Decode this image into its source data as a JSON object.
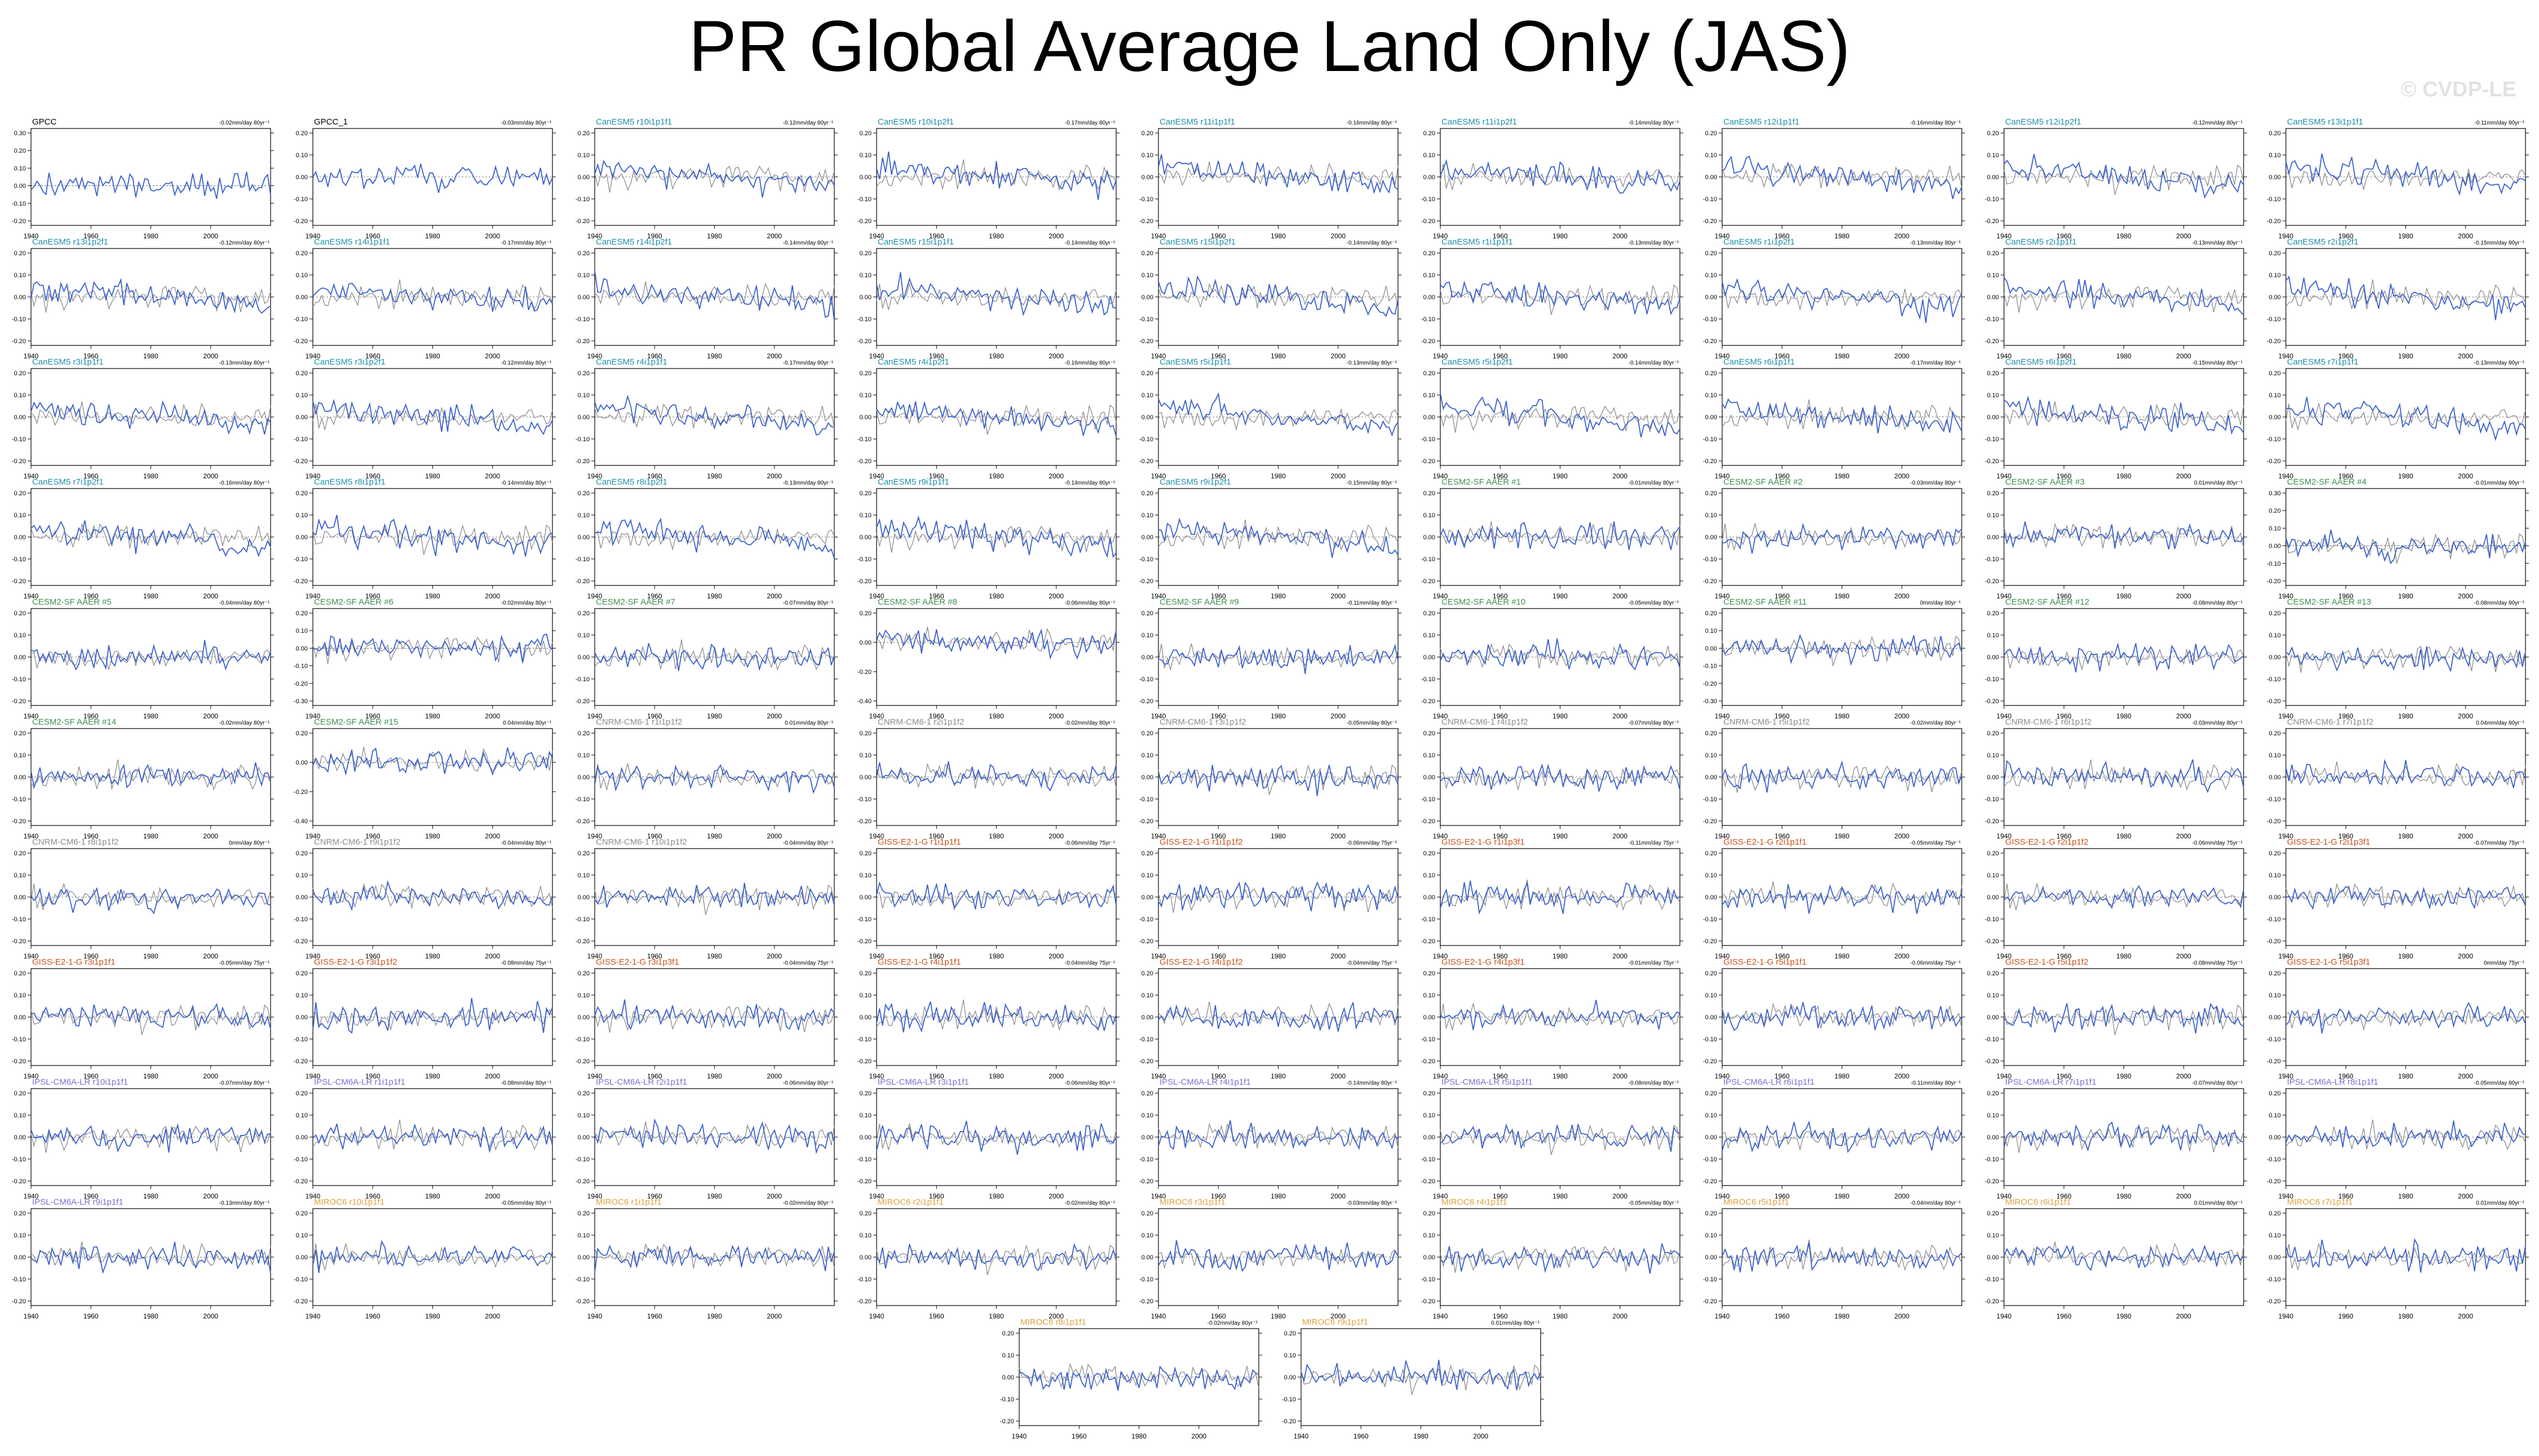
{
  "title": "PR Global Average Land Only (JAS)",
  "watermark": "© CVDP-LE",
  "colors": {
    "model_line": "#3a5fcd",
    "obs_line": "#8c8c8c",
    "canesm5": "#1f8fa8",
    "cesm2": "#3f8f4f",
    "cnrm": "#8c8c8c",
    "giss": "#c8501e",
    "ipsl": "#7a6fd0",
    "miroc": "#e0a040",
    "obs_title": "#000000"
  },
  "chart_data": {
    "type": "line",
    "x_range": [
      1940,
      2020
    ],
    "x_ticks": [
      "1940",
      "1960",
      "1980",
      "2000"
    ],
    "y_ticks_default": [
      "0.20",
      "0.10",
      "0.00",
      "-0.10",
      "-0.20"
    ],
    "panels": [
      {
        "name": "GPCC",
        "trend": "-0.02mm/day 80yr⁻¹",
        "group": "obs",
        "yticks": [
          "0.30",
          "0.20",
          "0.10",
          "0.00",
          "-0.10",
          "-0.20"
        ]
      },
      {
        "name": "GPCC_1",
        "trend": "-0.03mm/day 80yr⁻¹",
        "group": "obs"
      },
      {
        "name": "CanESM5 r10i1p1f1",
        "trend": "-0.12mm/day 80yr⁻¹",
        "group": "canesm5"
      },
      {
        "name": "CanESM5 r10i1p2f1",
        "trend": "-0.17mm/day 80yr⁻¹",
        "group": "canesm5"
      },
      {
        "name": "CanESM5 r11i1p1f1",
        "trend": "-0.16mm/day 80yr⁻¹",
        "group": "canesm5"
      },
      {
        "name": "CanESM5 r11i1p2f1",
        "trend": "-0.14mm/day 80yr⁻¹",
        "group": "canesm5"
      },
      {
        "name": "CanESM5 r12i1p1f1",
        "trend": "-0.16mm/day 80yr⁻¹",
        "group": "canesm5"
      },
      {
        "name": "CanESM5 r12i1p2f1",
        "trend": "-0.12mm/day 80yr⁻¹",
        "group": "canesm5"
      },
      {
        "name": "CanESM5 r13i1p1f1",
        "trend": "-0.11mm/day 80yr⁻¹",
        "group": "canesm5"
      },
      {
        "name": "CanESM5 r13i1p2f1",
        "trend": "-0.12mm/day 80yr⁻¹",
        "group": "canesm5"
      },
      {
        "name": "CanESM5 r14i1p1f1",
        "trend": "-0.17mm/day 80yr⁻¹",
        "group": "canesm5"
      },
      {
        "name": "CanESM5 r14i1p2f1",
        "trend": "-0.14mm/day 80yr⁻¹",
        "group": "canesm5"
      },
      {
        "name": "CanESM5 r15i1p1f1",
        "trend": "-0.14mm/day 80yr⁻¹",
        "group": "canesm5"
      },
      {
        "name": "CanESM5 r15i1p2f1",
        "trend": "-0.14mm/day 80yr⁻¹",
        "group": "canesm5"
      },
      {
        "name": "CanESM5 r1i1p1f1",
        "trend": "-0.13mm/day 80yr⁻¹",
        "group": "canesm5"
      },
      {
        "name": "CanESM5 r1i1p2f1",
        "trend": "-0.13mm/day 80yr⁻¹",
        "group": "canesm5"
      },
      {
        "name": "CanESM5 r2i1p1f1",
        "trend": "-0.13mm/day 80yr⁻¹",
        "group": "canesm5"
      },
      {
        "name": "CanESM5 r2i1p2f1",
        "trend": "-0.15mm/day 80yr⁻¹",
        "group": "canesm5"
      },
      {
        "name": "CanESM5 r3i1p1f1",
        "trend": "-0.13mm/day 80yr⁻¹",
        "group": "canesm5"
      },
      {
        "name": "CanESM5 r3i1p2f1",
        "trend": "-0.12mm/day 80yr⁻¹",
        "group": "canesm5"
      },
      {
        "name": "CanESM5 r4i1p1f1",
        "trend": "-0.17mm/day 80yr⁻¹",
        "group": "canesm5"
      },
      {
        "name": "CanESM5 r4i1p2f1",
        "trend": "-0.16mm/day 80yr⁻¹",
        "group": "canesm5"
      },
      {
        "name": "CanESM5 r5i1p1f1",
        "trend": "-0.13mm/day 80yr⁻¹",
        "group": "canesm5"
      },
      {
        "name": "CanESM5 r5i1p2f1",
        "trend": "-0.14mm/day 80yr⁻¹",
        "group": "canesm5"
      },
      {
        "name": "CanESM5 r6i1p1f1",
        "trend": "-0.17mm/day 80yr⁻¹",
        "group": "canesm5"
      },
      {
        "name": "CanESM5 r6i1p2f1",
        "trend": "-0.15mm/day 80yr⁻¹",
        "group": "canesm5"
      },
      {
        "name": "CanESM5 r7i1p1f1",
        "trend": "-0.13mm/day 80yr⁻¹",
        "group": "canesm5"
      },
      {
        "name": "CanESM5 r7i1p2f1",
        "trend": "-0.16mm/day 80yr⁻¹",
        "group": "canesm5"
      },
      {
        "name": "CanESM5 r8i1p1f1",
        "trend": "-0.14mm/day 80yr⁻¹",
        "group": "canesm5"
      },
      {
        "name": "CanESM5 r8i1p2f1",
        "trend": "-0.13mm/day 80yr⁻¹",
        "group": "canesm5"
      },
      {
        "name": "CanESM5 r9i1p1f1",
        "trend": "-0.14mm/day 80yr⁻¹",
        "group": "canesm5"
      },
      {
        "name": "CanESM5 r9i1p2f1",
        "trend": "-0.15mm/day 80yr⁻¹",
        "group": "canesm5"
      },
      {
        "name": "CESM2-SF AAER #1",
        "trend": "-0.01mm/day 80yr⁻¹",
        "group": "cesm2"
      },
      {
        "name": "CESM2-SF AAER #2",
        "trend": "-0.03mm/day 80yr⁻¹",
        "group": "cesm2"
      },
      {
        "name": "CESM2-SF AAER #3",
        "trend": "0.01mm/day 80yr⁻¹",
        "group": "cesm2"
      },
      {
        "name": "CESM2-SF AAER #4",
        "trend": "-0.01mm/day 80yr⁻¹",
        "group": "cesm2",
        "yticks": [
          "0.30",
          "0.20",
          "0.10",
          "0.00",
          "-0.10",
          "-0.20"
        ]
      },
      {
        "name": "CESM2-SF AAER #5",
        "trend": "-0.04mm/day 80yr⁻¹",
        "group": "cesm2"
      },
      {
        "name": "CESM2-SF AAER #6",
        "trend": "-0.02mm/day 80yr⁻¹",
        "group": "cesm2",
        "yticks": [
          "0.20",
          "0.10",
          "0.00",
          "-0.10",
          "-0.20",
          "-0.30"
        ]
      },
      {
        "name": "CESM2-SF AAER #7",
        "trend": "-0.07mm/day 80yr⁻¹",
        "group": "cesm2"
      },
      {
        "name": "CESM2-SF AAER #8",
        "trend": "-0.06mm/day 80yr⁻¹",
        "group": "cesm2",
        "yticks": [
          "0.20",
          "0.00",
          "-0.20",
          "-0.40"
        ]
      },
      {
        "name": "CESM2-SF AAER #9",
        "trend": "-0.11mm/day 80yr⁻¹",
        "group": "cesm2"
      },
      {
        "name": "CESM2-SF AAER #10",
        "trend": "-0.05mm/day 80yr⁻¹",
        "group": "cesm2"
      },
      {
        "name": "CESM2-SF AAER #11",
        "trend": "0mm/day 80yr⁻¹",
        "group": "cesm2",
        "yticks": [
          "0.20",
          "0.10",
          "0.00",
          "-0.10",
          "-0.20",
          "-0.30"
        ]
      },
      {
        "name": "CESM2-SF AAER #12",
        "trend": "-0.08mm/day 80yr⁻¹",
        "group": "cesm2"
      },
      {
        "name": "CESM2-SF AAER #13",
        "trend": "-0.08mm/day 80yr⁻¹",
        "group": "cesm2"
      },
      {
        "name": "CESM2-SF AAER #14",
        "trend": "-0.02mm/day 80yr⁻¹",
        "group": "cesm2"
      },
      {
        "name": "CESM2-SF AAER #15",
        "trend": "0.04mm/day 80yr⁻¹",
        "group": "cesm2",
        "yticks": [
          "0.20",
          "0.00",
          "-0.20",
          "-0.40"
        ]
      },
      {
        "name": "CNRM-CM6-1 r1i1p1f2",
        "trend": "0.01mm/day 80yr⁻¹",
        "group": "cnrm"
      },
      {
        "name": "CNRM-CM6-1 r2i1p1f2",
        "trend": "-0.02mm/day 80yr⁻¹",
        "group": "cnrm"
      },
      {
        "name": "CNRM-CM6-1 r3i1p1f2",
        "trend": "-0.05mm/day 80yr⁻¹",
        "group": "cnrm"
      },
      {
        "name": "CNRM-CM6-1 r4i1p1f2",
        "trend": "-0.07mm/day 80yr⁻¹",
        "group": "cnrm"
      },
      {
        "name": "CNRM-CM6-1 r5i1p1f2",
        "trend": "-0.02mm/day 80yr⁻¹",
        "group": "cnrm"
      },
      {
        "name": "CNRM-CM6-1 r6i1p1f2",
        "trend": "-0.03mm/day 80yr⁻¹",
        "group": "cnrm"
      },
      {
        "name": "CNRM-CM6-1 r7i1p1f2",
        "trend": "0.04mm/day 80yr⁻¹",
        "group": "cnrm"
      },
      {
        "name": "CNRM-CM6-1 r8i1p1f2",
        "trend": "0mm/day 80yr⁻¹",
        "group": "cnrm"
      },
      {
        "name": "CNRM-CM6-1 r9i1p1f2",
        "trend": "-0.04mm/day 80yr⁻¹",
        "group": "cnrm"
      },
      {
        "name": "CNRM-CM6-1 r10i1p1f2",
        "trend": "-0.04mm/day 80yr⁻¹",
        "group": "cnrm"
      },
      {
        "name": "GISS-E2-1-G r1i1p1f1",
        "trend": "-0.06mm/day 75yr⁻¹",
        "group": "giss"
      },
      {
        "name": "GISS-E2-1-G r1i1p1f2",
        "trend": "-0.06mm/day 75yr⁻¹",
        "group": "giss"
      },
      {
        "name": "GISS-E2-1-G r1i1p3f1",
        "trend": "-0.11mm/day 75yr⁻¹",
        "group": "giss"
      },
      {
        "name": "GISS-E2-1-G r2i1p1f1",
        "trend": "-0.05mm/day 75yr⁻¹",
        "group": "giss"
      },
      {
        "name": "GISS-E2-1-G r2i1p1f2",
        "trend": "-0.06mm/day 75yr⁻¹",
        "group": "giss"
      },
      {
        "name": "GISS-E2-1-G r2i1p3f1",
        "trend": "-0.07mm/day 75yr⁻¹",
        "group": "giss"
      },
      {
        "name": "GISS-E2-1-G r3i1p1f1",
        "trend": "-0.05mm/day 75yr⁻¹",
        "group": "giss"
      },
      {
        "name": "GISS-E2-1-G r3i1p1f2",
        "trend": "-0.08mm/day 75yr⁻¹",
        "group": "giss"
      },
      {
        "name": "GISS-E2-1-G r3i1p3f1",
        "trend": "-0.04mm/day 75yr⁻¹",
        "group": "giss"
      },
      {
        "name": "GISS-E2-1-G r4i1p1f1",
        "trend": "-0.04mm/day 75yr⁻¹",
        "group": "giss"
      },
      {
        "name": "GISS-E2-1-G r4i1p1f2",
        "trend": "-0.04mm/day 75yr⁻¹",
        "group": "giss"
      },
      {
        "name": "GISS-E2-1-G r4i1p3f1",
        "trend": "-0.01mm/day 75yr⁻¹",
        "group": "giss"
      },
      {
        "name": "GISS-E2-1-G r5i1p1f1",
        "trend": "-0.06mm/day 75yr⁻¹",
        "group": "giss"
      },
      {
        "name": "GISS-E2-1-G r5i1p1f2",
        "trend": "-0.08mm/day 75yr⁻¹",
        "group": "giss"
      },
      {
        "name": "GISS-E2-1-G r5i1p3f1",
        "trend": "0mm/day 75yr⁻¹",
        "group": "giss"
      },
      {
        "name": "IPSL-CM6A-LR r10i1p1f1",
        "trend": "-0.07mm/day 80yr⁻¹",
        "group": "ipsl"
      },
      {
        "name": "IPSL-CM6A-LR r1i1p1f1",
        "trend": "-0.08mm/day 80yr⁻¹",
        "group": "ipsl"
      },
      {
        "name": "IPSL-CM6A-LR r2i1p1f1",
        "trend": "-0.06mm/day 80yr⁻¹",
        "group": "ipsl"
      },
      {
        "name": "IPSL-CM6A-LR r3i1p1f1",
        "trend": "-0.06mm/day 80yr⁻¹",
        "group": "ipsl"
      },
      {
        "name": "IPSL-CM6A-LR r4i1p1f1",
        "trend": "-0.14mm/day 80yr⁻¹",
        "group": "ipsl"
      },
      {
        "name": "IPSL-CM6A-LR r5i1p1f1",
        "trend": "-0.08mm/day 80yr⁻¹",
        "group": "ipsl"
      },
      {
        "name": "IPSL-CM6A-LR r6i1p1f1",
        "trend": "-0.11mm/day 80yr⁻¹",
        "group": "ipsl"
      },
      {
        "name": "IPSL-CM6A-LR r7i1p1f1",
        "trend": "-0.07mm/day 80yr⁻¹",
        "group": "ipsl"
      },
      {
        "name": "IPSL-CM6A-LR r8i1p1f1",
        "trend": "-0.05mm/day 80yr⁻¹",
        "group": "ipsl"
      },
      {
        "name": "IPSL-CM6A-LR r9i1p1f1",
        "trend": "-0.13mm/day 80yr⁻¹",
        "group": "ipsl"
      },
      {
        "name": "MIROC6 r10i1p1f1",
        "trend": "-0.05mm/day 80yr⁻¹",
        "group": "miroc"
      },
      {
        "name": "MIROC6 r1i1p1f1",
        "trend": "-0.02mm/day 80yr⁻¹",
        "group": "miroc"
      },
      {
        "name": "MIROC6 r2i1p1f1",
        "trend": "-0.02mm/day 80yr⁻¹",
        "group": "miroc"
      },
      {
        "name": "MIROC6 r3i1p1f1",
        "trend": "-0.03mm/day 80yr⁻¹",
        "group": "miroc"
      },
      {
        "name": "MIROC6 r4i1p1f1",
        "trend": "-0.05mm/day 80yr⁻¹",
        "group": "miroc"
      },
      {
        "name": "MIROC6 r5i1p1f1",
        "trend": "-0.04mm/day 80yr⁻¹",
        "group": "miroc"
      },
      {
        "name": "MIROC6 r6i1p1f1",
        "trend": "0.01mm/day 80yr⁻¹",
        "group": "miroc"
      },
      {
        "name": "MIROC6 r7i1p1f1",
        "trend": "0.01mm/day 80yr⁻¹",
        "group": "miroc"
      },
      {
        "name": "MIROC6 r8i1p1f1",
        "trend": "-0.02mm/day 80yr⁻¹",
        "group": "miroc"
      },
      {
        "name": "MIROC6 r9i1p1f1",
        "trend": "0.01mm/day 80yr⁻¹",
        "group": "miroc"
      }
    ]
  }
}
